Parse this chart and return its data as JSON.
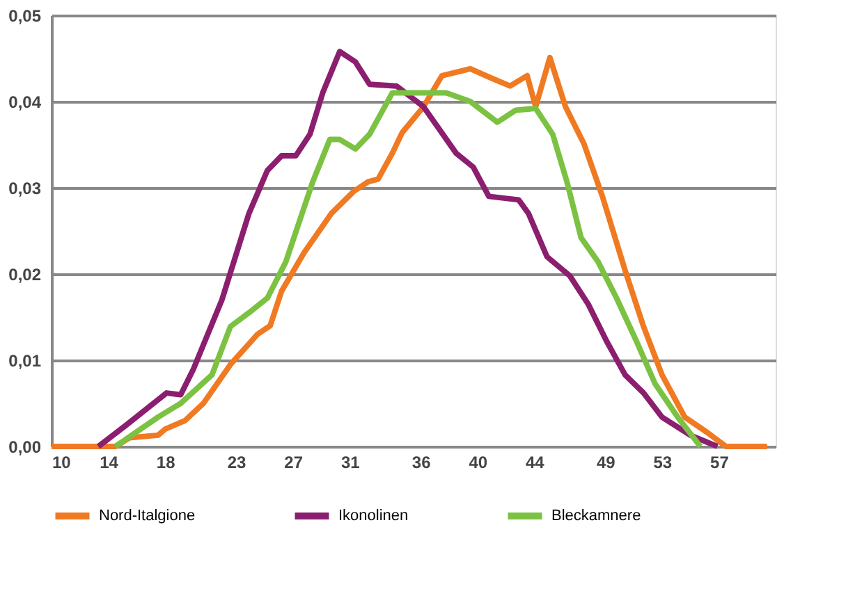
{
  "chart_data": {
    "type": "line",
    "xlim": [
      10,
      61
    ],
    "ylim": [
      0,
      0.05
    ],
    "xticks": [
      10,
      14,
      18,
      23,
      27,
      31,
      36,
      40,
      44,
      49,
      53,
      57
    ],
    "yticks": [
      {
        "value": 0,
        "label": "0,00"
      },
      {
        "value": 0.01,
        "label": "0,01"
      },
      {
        "value": 0.02,
        "label": "0,02"
      },
      {
        "value": 0.03,
        "label": "0,03"
      },
      {
        "value": 0.04,
        "label": "0,04"
      },
      {
        "value": 0.05,
        "label": "0,05"
      }
    ],
    "grid": "y",
    "legend": "bottom",
    "line_style": "solid",
    "marker": "none",
    "series": [
      {
        "name": "Nord-Italgione",
        "color": "#f07a22",
        "x": [
          10,
          14.5,
          15.5,
          17.5,
          18,
          19.4,
          20.7,
          22.6,
          24.5,
          25.4,
          26.2,
          27.8,
          29.7,
          31.3,
          32.3,
          33,
          34,
          34.7,
          36.2,
          37.5,
          39.5,
          41,
          42.3,
          43.5,
          44.1,
          45.1,
          46.2,
          47.5,
          48.8,
          50.4,
          51.7,
          53,
          54.6,
          56.2,
          57.5,
          60.4
        ],
        "values": [
          0,
          0,
          0.001,
          0.0013,
          0.002,
          0.003,
          0.005,
          0.0095,
          0.013,
          0.014,
          0.018,
          0.0225,
          0.027,
          0.0296,
          0.0307,
          0.031,
          0.034,
          0.0364,
          0.0394,
          0.043,
          0.0438,
          0.0427,
          0.0418,
          0.043,
          0.0394,
          0.0451,
          0.0394,
          0.0351,
          0.029,
          0.0204,
          0.0139,
          0.0083,
          0.0034,
          0.0016,
          0,
          0
        ]
      },
      {
        "name": "Ikonolinen",
        "color": "#8b1e6e",
        "x": [
          13.3,
          15.2,
          18.1,
          19.1,
          20,
          22,
          23.9,
          25.2,
          26.2,
          27.2,
          28.2,
          29.1,
          30.3,
          31.4,
          32.4,
          34.3,
          36.2,
          38.5,
          39.7,
          40.8,
          42.9,
          43.6,
          44.9,
          46.5,
          47.8,
          49.1,
          50.4,
          51.7,
          53,
          55,
          56.9
        ],
        "values": [
          0,
          0.0024,
          0.0062,
          0.006,
          0.009,
          0.017,
          0.027,
          0.032,
          0.0337,
          0.0337,
          0.0362,
          0.041,
          0.0458,
          0.0446,
          0.042,
          0.0418,
          0.0394,
          0.034,
          0.0324,
          0.029,
          0.0286,
          0.027,
          0.022,
          0.0198,
          0.0165,
          0.0122,
          0.0083,
          0.0062,
          0.0034,
          0.0013,
          0
        ]
      },
      {
        "name": "Bleckamnere",
        "color": "#7cc242",
        "x": [
          14.5,
          17.5,
          19.1,
          21.3,
          22.6,
          23.9,
          25.2,
          26.5,
          28.4,
          29.6,
          30.3,
          31.4,
          32.4,
          34,
          36,
          37.8,
          39.5,
          41.4,
          42.7,
          44.1,
          45.3,
          46.3,
          47.3,
          48.5,
          49.8,
          51.2,
          52.5,
          54.1,
          55.7
        ],
        "values": [
          0,
          0.0034,
          0.005,
          0.0083,
          0.0139,
          0.0155,
          0.0172,
          0.0214,
          0.0307,
          0.0356,
          0.0356,
          0.0345,
          0.0362,
          0.041,
          0.041,
          0.041,
          0.04,
          0.0376,
          0.039,
          0.0392,
          0.0362,
          0.0307,
          0.0242,
          0.0214,
          0.0172,
          0.0122,
          0.0073,
          0.0034,
          0
        ]
      }
    ]
  }
}
